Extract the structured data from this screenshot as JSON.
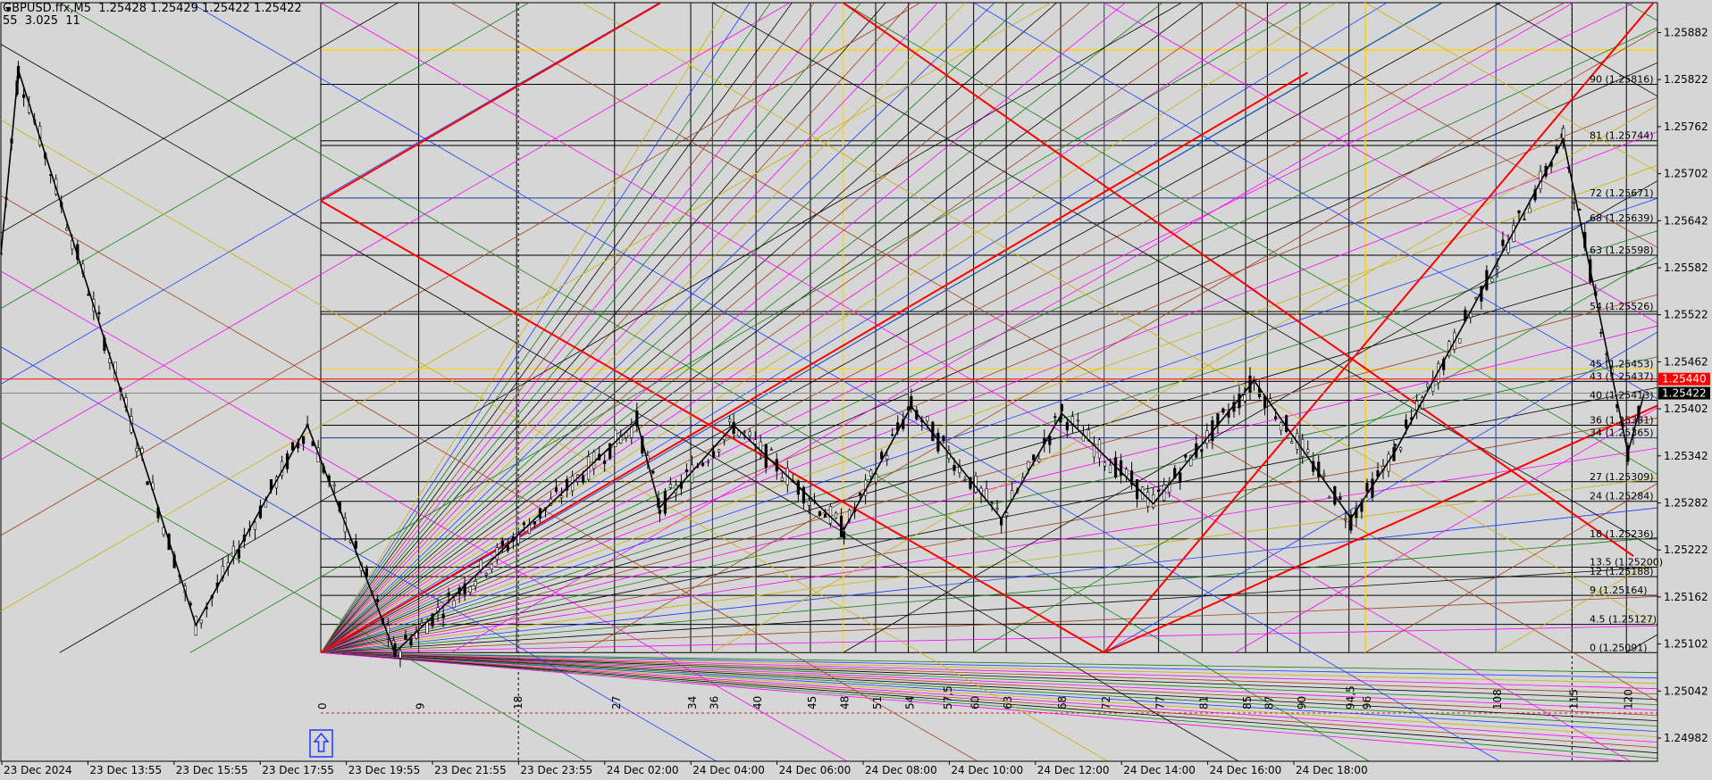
{
  "header": {
    "symbol_line": "GBPUSD.ffx,M5  1.25428 1.25429 1.25422 1.25422",
    "indicator_line": "55  3.025  11"
  },
  "colors": {
    "background": "#d6d6d6",
    "grid_red": "#ff0000",
    "yellow": "#ffd400",
    "blue": "#1a3cff",
    "green": "#108010",
    "magenta": "#ff00ff",
    "brown": "#a0401a",
    "price_bid_bg": "#000000",
    "price_ask_bg": "#ff0000"
  },
  "chart_data": {
    "type": "candlestick",
    "symbol": "GBPUSD.ffx",
    "timeframe": "M5",
    "ohlc_current": {
      "open": 1.25428,
      "high": 1.25429,
      "low": 1.25422,
      "close": 1.25422
    },
    "ylim": [
      1.24982,
      1.25942
    ],
    "y_ticks": [
      1.25882,
      1.25822,
      1.25762,
      1.25702,
      1.25642,
      1.25582,
      1.25522,
      1.25462,
      1.25402,
      1.25342,
      1.25282,
      1.25222,
      1.25162,
      1.25102,
      1.25042,
      1.24982
    ],
    "x_ticks": [
      "23 Dec 2024",
      "23 Dec 13:55",
      "23 Dec 15:55",
      "23 Dec 17:55",
      "23 Dec 19:55",
      "23 Dec 21:55",
      "23 Dec 23:55",
      "24 Dec 02:00",
      "24 Dec 04:00",
      "24 Dec 06:00",
      "24 Dec 08:00",
      "24 Dec 10:00",
      "24 Dec 12:00",
      "24 Dec 14:00",
      "24 Dec 16:00",
      "24 Dec 18:00"
    ],
    "price_labels": {
      "ask": "1.25440",
      "bid": "1.25422"
    },
    "levels": [
      {
        "label": "90 (1.25816)",
        "price": 1.25816
      },
      {
        "label": "81 (1.25744)",
        "price": 1.25744
      },
      {
        "label": "72 (1.25671)",
        "price": 1.25671
      },
      {
        "label": "68 (1.25639)",
        "price": 1.25639
      },
      {
        "label": "63 (1.25598)",
        "price": 1.25598
      },
      {
        "label": "54 (1.25526)",
        "price": 1.25526
      },
      {
        "label": "45 (1.25453)",
        "price": 1.25453
      },
      {
        "label": "43 (1.25437)",
        "price": 1.25437
      },
      {
        "label": "40 (1.25413)",
        "price": 1.25413
      },
      {
        "label": "36 (1.25381)",
        "price": 1.25381
      },
      {
        "label": "34 (1.25365)",
        "price": 1.25365
      },
      {
        "label": "27 (1.25309)",
        "price": 1.25309
      },
      {
        "label": "24 (1.25284)",
        "price": 1.25284
      },
      {
        "label": "18 (1.25236)",
        "price": 1.25236
      },
      {
        "label": "13.5 (1.25200)",
        "price": 1.252
      },
      {
        "label": "12 (1.25188)",
        "price": 1.25188
      },
      {
        "label": "9 (1.25164)",
        "price": 1.25164
      },
      {
        "label": "4.5 (1.25127)",
        "price": 1.25127
      },
      {
        "label": "0 (1.25091)",
        "price": 1.25091
      }
    ],
    "time_numbers": [
      "0",
      "9",
      "18",
      "27",
      "34",
      "36",
      "40",
      "45",
      "48",
      "51",
      "54",
      "57,5",
      "60",
      "63",
      "68",
      "72",
      "77",
      "81",
      "85",
      "87",
      "90",
      "94,5",
      "96",
      "108",
      "115",
      "120"
    ],
    "zigzag": [
      {
        "t": 0,
        "price": 1.25599
      },
      {
        "t": 13,
        "price": 1.25834
      },
      {
        "t": 145,
        "price": 1.25126
      },
      {
        "t": 228,
        "price": 1.25381
      },
      {
        "t": 293,
        "price": 1.25091
      },
      {
        "t": 473,
        "price": 1.25386
      },
      {
        "t": 490,
        "price": 1.25276
      },
      {
        "t": 545,
        "price": 1.25381
      },
      {
        "t": 627,
        "price": 1.25248
      },
      {
        "t": 677,
        "price": 1.25405
      },
      {
        "t": 744,
        "price": 1.25262
      },
      {
        "t": 789,
        "price": 1.25396
      },
      {
        "t": 857,
        "price": 1.25281
      },
      {
        "t": 932,
        "price": 1.25438
      },
      {
        "t": 1004,
        "price": 1.25262
      },
      {
        "t": 1037,
        "price": 1.25348
      },
      {
        "t": 1162,
        "price": 1.25746
      },
      {
        "t": 1210,
        "price": 1.25346
      },
      {
        "t": 1222,
        "price": 1.25421
      }
    ]
  }
}
